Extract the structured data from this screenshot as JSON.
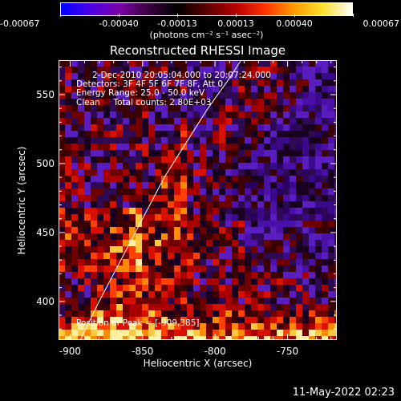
{
  "colorbar": {
    "tick_labels": [
      "-0.00067",
      "-0.00040",
      "-0.00013",
      "0.00013",
      "0.00040",
      "0.00067"
    ],
    "units": "(photons cm⁻² s⁻¹ asec⁻²)",
    "colors": [
      "#0000ff",
      "#4b00e6",
      "#7a00a8",
      "#3a0040",
      "#000000",
      "#5a0000",
      "#b40000",
      "#ff3000",
      "#ff9a00",
      "#ffe030",
      "#ffffff"
    ]
  },
  "plot": {
    "title": "Reconstructed RHESSI Image",
    "info_lines": [
      "2-Dec-2010 20:05:04.000 to 20:07:24.000",
      "Detectors: 3F 4F 5F 6F 7F 8F, Att 0",
      "Energy Range: 25.0 - 50.0 keV",
      "Clean     Total counts: 2.80E+03"
    ],
    "peak_label": "Position of Peak = [-909,385]"
  },
  "axes": {
    "xlabel": "Heliocentric X (arcsec)",
    "ylabel": "Heliocentric Y (arcsec)",
    "xlim": [
      -908,
      -716
    ],
    "ylim": [
      372,
      575
    ],
    "x_ticks": [
      -900,
      -850,
      -800,
      -750
    ],
    "x_tick_labels": [
      "-900",
      "-850",
      "-800",
      "-750"
    ],
    "y_ticks": [
      400,
      450,
      500,
      550
    ],
    "y_tick_labels": [
      "400",
      "450",
      "500",
      "550"
    ]
  },
  "chart_data": {
    "type": "heatmap",
    "title": "Reconstructed RHESSI Image",
    "xlabel": "Heliocentric X (arcsec)",
    "ylabel": "Heliocentric Y (arcsec)",
    "xlim": [
      -908,
      -716
    ],
    "ylim": [
      372,
      575
    ],
    "value_range": [
      -0.00067,
      0.00067
    ],
    "peak": [
      -909,
      385
    ],
    "limb_curve": [
      [
        -893,
        372
      ],
      [
        -880,
        400
      ],
      [
        -865,
        430
      ],
      [
        -850,
        460
      ],
      [
        -835,
        490
      ],
      [
        -820,
        515
      ],
      [
        -805,
        540
      ],
      [
        -790,
        562
      ],
      [
        -782,
        575
      ]
    ]
  },
  "footer": {
    "timestamp": "11-May-2022 02:23"
  }
}
